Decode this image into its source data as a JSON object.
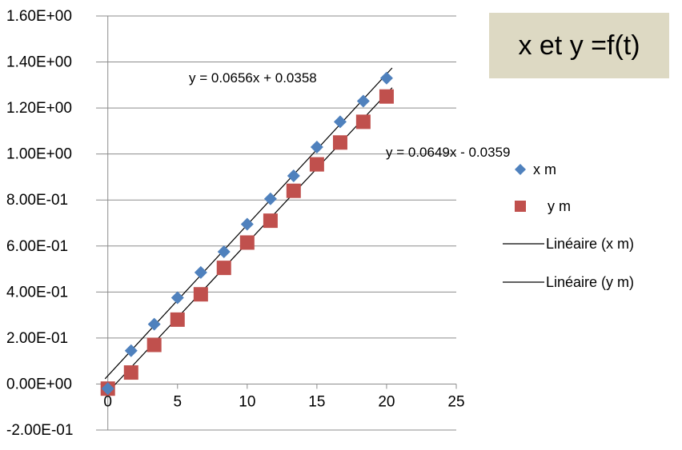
{
  "chart_data": {
    "type": "scatter",
    "title": "x et y =f(t)",
    "xlim": [
      -0.5,
      25
    ],
    "ylim": [
      -0.2,
      1.6
    ],
    "x_ticks": [
      0,
      5,
      10,
      15,
      20,
      25
    ],
    "x_tick_labels": [
      "0",
      "5",
      "10",
      "15",
      "20",
      "25"
    ],
    "y_ticks": [
      -0.2,
      0,
      0.2,
      0.4,
      0.6,
      0.8,
      1.0,
      1.2,
      1.4,
      1.6
    ],
    "y_tick_labels": [
      "-2.00E-01",
      "0.00E+00",
      "2.00E-01",
      "4.00E-01",
      "6.00E-01",
      "8.00E-01",
      "1.00E+00",
      "1.20E+00",
      "1.40E+00",
      "1.60E+00"
    ],
    "grid": "horizontal",
    "legend_position": "right",
    "series": [
      {
        "name": "x m",
        "marker": "diamond",
        "color": "#4f81bd",
        "x": [
          0,
          1.67,
          3.33,
          5,
          6.67,
          8.33,
          10,
          11.67,
          13.33,
          15,
          16.67,
          18.33,
          20
        ],
        "y": [
          -0.02,
          0.145,
          0.26,
          0.375,
          0.485,
          0.575,
          0.695,
          0.805,
          0.905,
          1.03,
          1.14,
          1.23,
          1.33
        ]
      },
      {
        "name": "y m",
        "marker": "square",
        "color": "#c0504d",
        "x": [
          0,
          1.67,
          3.33,
          5,
          6.67,
          8.33,
          10,
          11.67,
          13.33,
          15,
          16.67,
          18.33,
          20
        ],
        "y": [
          -0.02,
          0.05,
          0.17,
          0.28,
          0.39,
          0.505,
          0.615,
          0.71,
          0.84,
          0.955,
          1.05,
          1.14,
          1.25
        ]
      }
    ],
    "trendlines": [
      {
        "name": "Linéaire (x m)",
        "slope": 0.0656,
        "intercept": 0.0358,
        "equation": "y = 0.0656x + 0.0358",
        "color": "#000000"
      },
      {
        "name": "Linéaire (y m)",
        "slope": 0.0649,
        "intercept": -0.0359,
        "equation": "y = 0.0649x - 0.0359",
        "color": "#000000"
      }
    ]
  },
  "colors": {
    "title_box_bg": "#ddd9c3",
    "gridline": "#8c8c8c",
    "axis": "#8c8c8c"
  }
}
